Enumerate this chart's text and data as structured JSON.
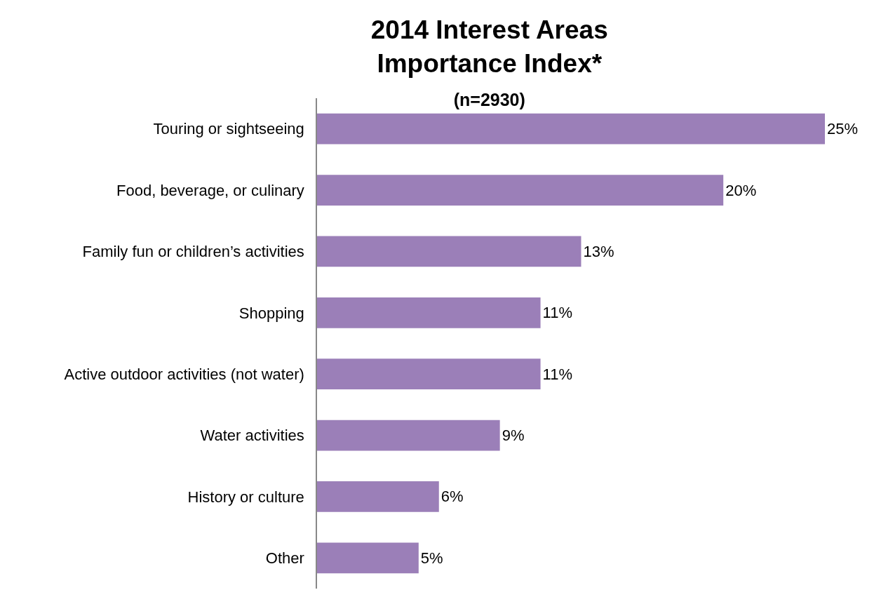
{
  "chart_data": {
    "type": "bar",
    "orientation": "horizontal",
    "title": "2014 Interest Areas Importance Index*",
    "subtitle": "(n=2930)",
    "categories": [
      "Touring or sightseeing",
      "Food, beverage, or culinary",
      "Family fun or children’s activities",
      "Shopping",
      "Active outdoor activities (not water)",
      "Water activities",
      "History or culture",
      "Other"
    ],
    "values": [
      25,
      20,
      13,
      11,
      11,
      9,
      6,
      5
    ],
    "value_labels": [
      "25%",
      "20%",
      "13%",
      "11%",
      "11%",
      "9%",
      "6%",
      "5%"
    ],
    "color": "#9b7fb8",
    "grid": false,
    "legend": false,
    "tick_labels": "y"
  }
}
